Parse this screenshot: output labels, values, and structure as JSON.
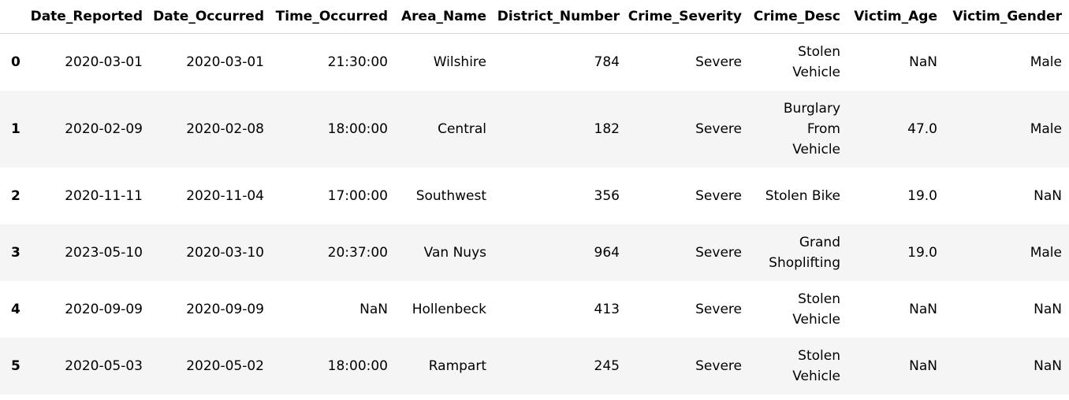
{
  "table": {
    "columns": [
      "",
      "Date_Reported",
      "Date_Occurred",
      "Time_Occurred",
      "Area_Name",
      "District_Number",
      "Crime_Severity",
      "Crime_Desc",
      "Victim_Age",
      "Victim_Gender"
    ],
    "rows": [
      {
        "index": "0",
        "cells": [
          "2020-03-01",
          "2020-03-01",
          "21:30:00",
          "Wilshire",
          "784",
          "Severe",
          "Stolen\nVehicle",
          "NaN",
          "Male"
        ]
      },
      {
        "index": "1",
        "cells": [
          "2020-02-09",
          "2020-02-08",
          "18:00:00",
          "Central",
          "182",
          "Severe",
          "Burglary\nFrom\nVehicle",
          "47.0",
          "Male"
        ]
      },
      {
        "index": "2",
        "cells": [
          "2020-11-11",
          "2020-11-04",
          "17:00:00",
          "Southwest",
          "356",
          "Severe",
          "Stolen Bike",
          "19.0",
          "NaN"
        ]
      },
      {
        "index": "3",
        "cells": [
          "2023-05-10",
          "2020-03-10",
          "20:37:00",
          "Van Nuys",
          "964",
          "Severe",
          "Grand\nShoplifting",
          "19.0",
          "Male"
        ]
      },
      {
        "index": "4",
        "cells": [
          "2020-09-09",
          "2020-09-09",
          "NaN",
          "Hollenbeck",
          "413",
          "Severe",
          "Stolen\nVehicle",
          "NaN",
          "NaN"
        ]
      },
      {
        "index": "5",
        "cells": [
          "2020-05-03",
          "2020-05-02",
          "18:00:00",
          "Rampart",
          "245",
          "Severe",
          "Stolen\nVehicle",
          "NaN",
          "NaN"
        ]
      }
    ]
  }
}
